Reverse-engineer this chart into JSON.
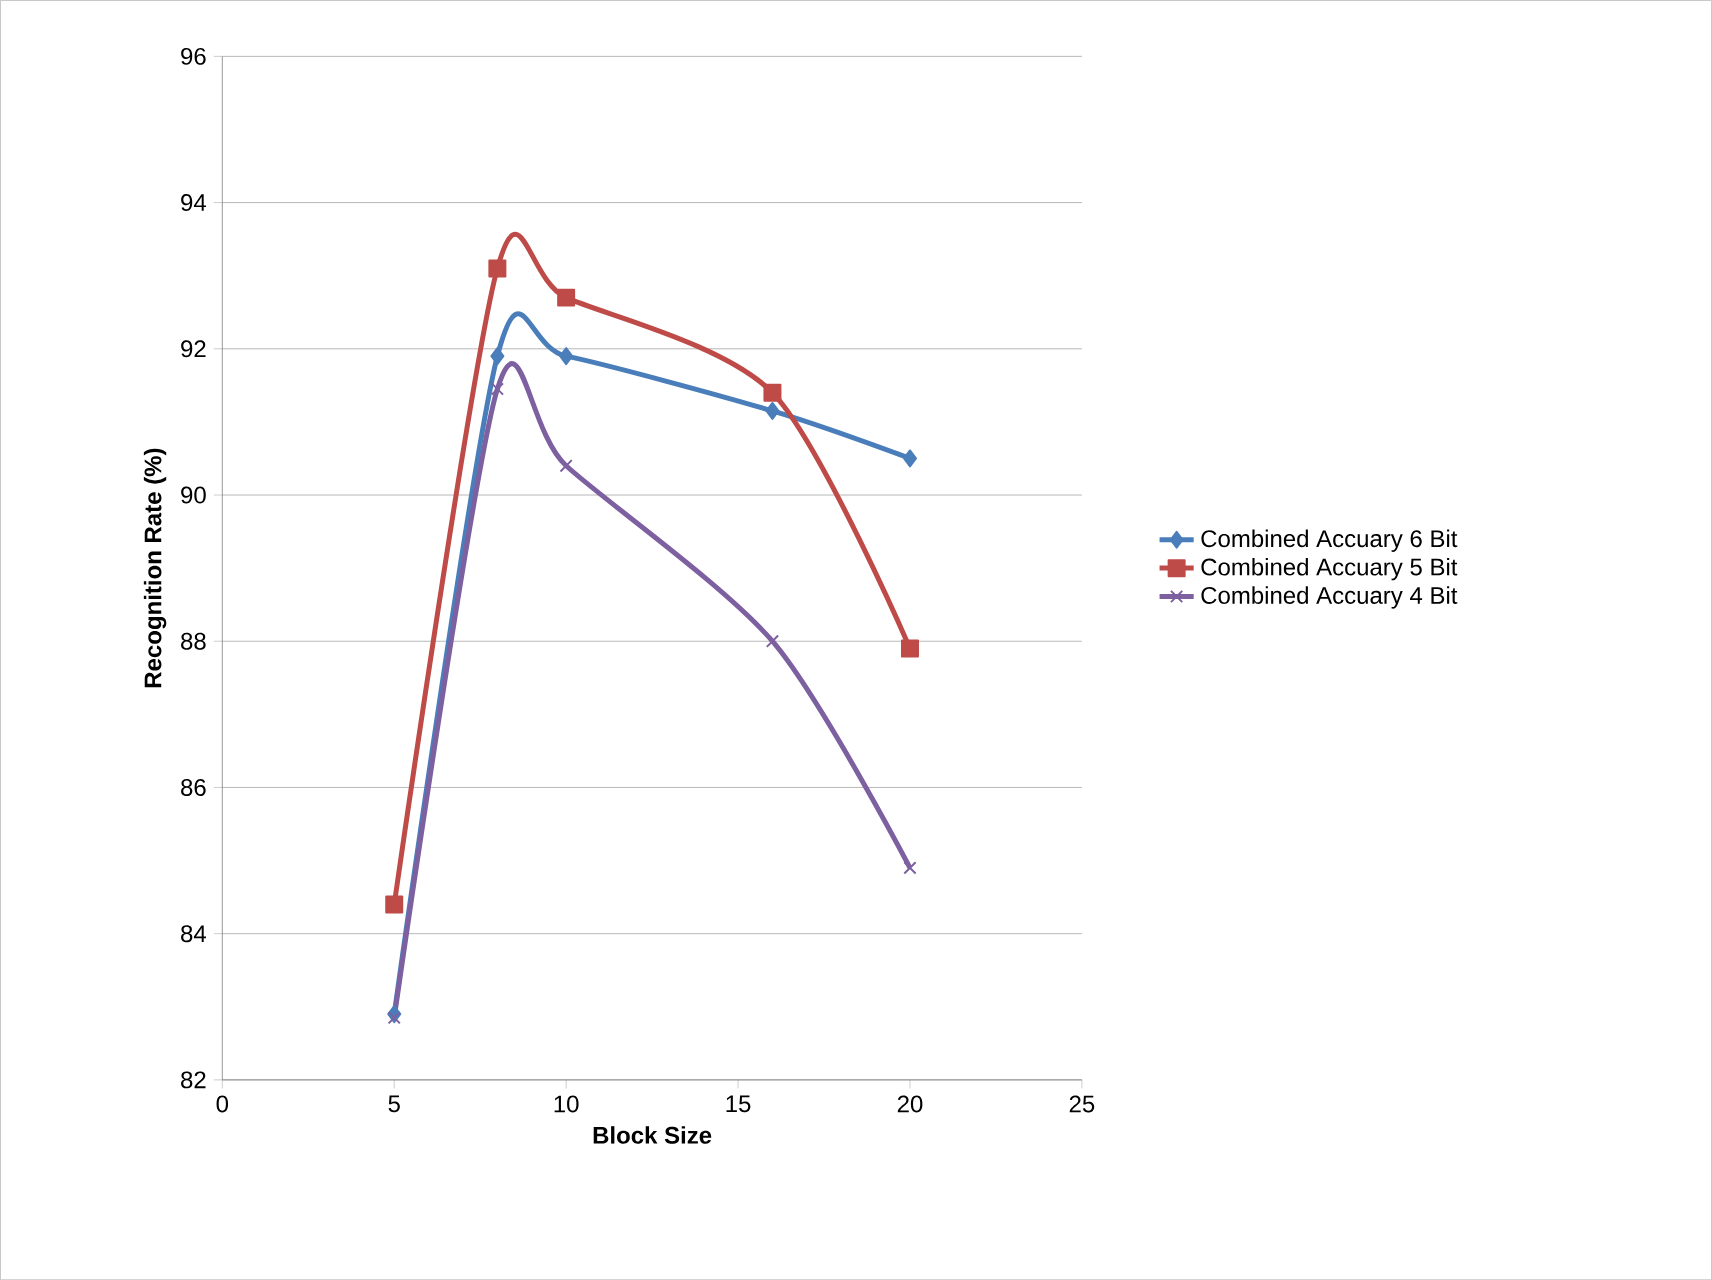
{
  "chart_data": {
    "type": "line",
    "xlabel": "Block Size",
    "ylabel": "Recognition Rate (%)",
    "x": [
      5,
      8,
      10,
      16,
      20
    ],
    "series": [
      {
        "name": "Combined Accuary 6 Bit",
        "color": "#4a7ebb",
        "marker": "diamond",
        "values": [
          82.9,
          91.9,
          91.9,
          91.15,
          90.5
        ]
      },
      {
        "name": "Combined Accuary 5 Bit",
        "color": "#be4b48",
        "marker": "square",
        "values": [
          84.4,
          93.1,
          92.7,
          91.4,
          87.9
        ]
      },
      {
        "name": "Combined Accuary 4 Bit",
        "color": "#7d60a0",
        "marker": "cross",
        "values": [
          82.85,
          91.45,
          90.4,
          88.0,
          84.9
        ]
      }
    ],
    "xlim": [
      0,
      25
    ],
    "xticks": [
      0,
      5,
      10,
      15,
      20,
      25
    ],
    "ylim": [
      82,
      96
    ],
    "yticks": [
      82,
      84,
      86,
      88,
      90,
      92,
      94,
      96
    ],
    "grid": "y",
    "legend": "right"
  }
}
